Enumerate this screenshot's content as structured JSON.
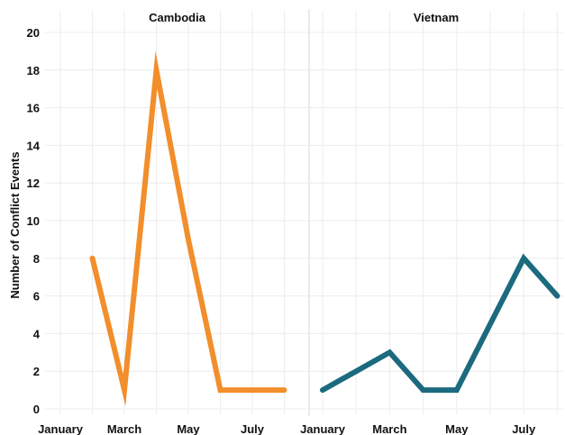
{
  "chart_data": {
    "type": "line",
    "ylabel": "Number of Conflict Events",
    "ylim": [
      0,
      20
    ],
    "yticks": [
      0,
      2,
      4,
      6,
      8,
      10,
      12,
      14,
      16,
      18,
      20
    ],
    "grid": true,
    "x_tick_labels": [
      "January",
      "March",
      "May",
      "July"
    ],
    "facets": [
      {
        "title": "Cambodia",
        "color": "#F28E2B",
        "points": [
          {
            "month": "February",
            "value": 8
          },
          {
            "month": "March",
            "value": 1
          },
          {
            "month": "April",
            "value": 18
          },
          {
            "month": "May",
            "value": 9
          },
          {
            "month": "June",
            "value": 1
          },
          {
            "month": "July",
            "value": 1
          },
          {
            "month": "August",
            "value": 1
          }
        ]
      },
      {
        "title": "Vietnam",
        "color": "#1B6A7E",
        "points": [
          {
            "month": "January",
            "value": 1
          },
          {
            "month": "February",
            "value": 2
          },
          {
            "month": "March",
            "value": 3
          },
          {
            "month": "April",
            "value": 1
          },
          {
            "month": "May",
            "value": 1
          },
          {
            "month": "June",
            "value": 4.5
          },
          {
            "month": "July",
            "value": 8
          },
          {
            "month": "August",
            "value": 6
          }
        ]
      }
    ]
  }
}
